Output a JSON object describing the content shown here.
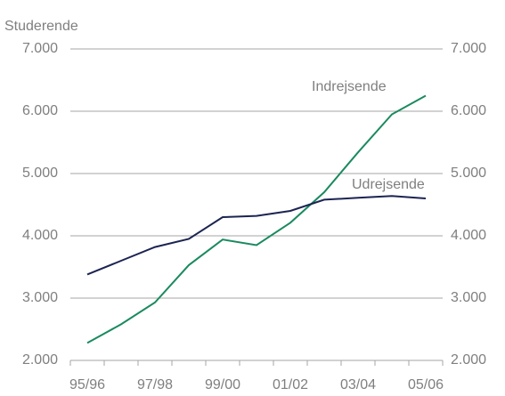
{
  "chart_data": {
    "type": "line",
    "y_axis_label": "Studerende",
    "categories": [
      "95/96",
      null,
      "97/98",
      null,
      "99/00",
      null,
      "01/02",
      null,
      "03/04",
      null,
      "05/06"
    ],
    "series": [
      {
        "name": "Indrejsende",
        "color": "#1a8a5f",
        "values": [
          2280,
          2580,
          2930,
          3530,
          3940,
          3850,
          4210,
          4700,
          5340,
          5950,
          6250
        ]
      },
      {
        "name": "Udrejsende",
        "color": "#1c2452",
        "values": [
          3380,
          3600,
          3820,
          3950,
          4300,
          4320,
          4400,
          4580,
          4610,
          4640,
          4600
        ]
      }
    ],
    "ylim": [
      2000,
      7000
    ],
    "yticks": [
      {
        "value": 2000,
        "label": "2.000"
      },
      {
        "value": 3000,
        "label": "3.000"
      },
      {
        "value": 4000,
        "label": "4.000"
      },
      {
        "value": 5000,
        "label": "5.000"
      },
      {
        "value": 6000,
        "label": "6.000"
      },
      {
        "value": 7000,
        "label": "7.000"
      }
    ],
    "grid": true
  }
}
